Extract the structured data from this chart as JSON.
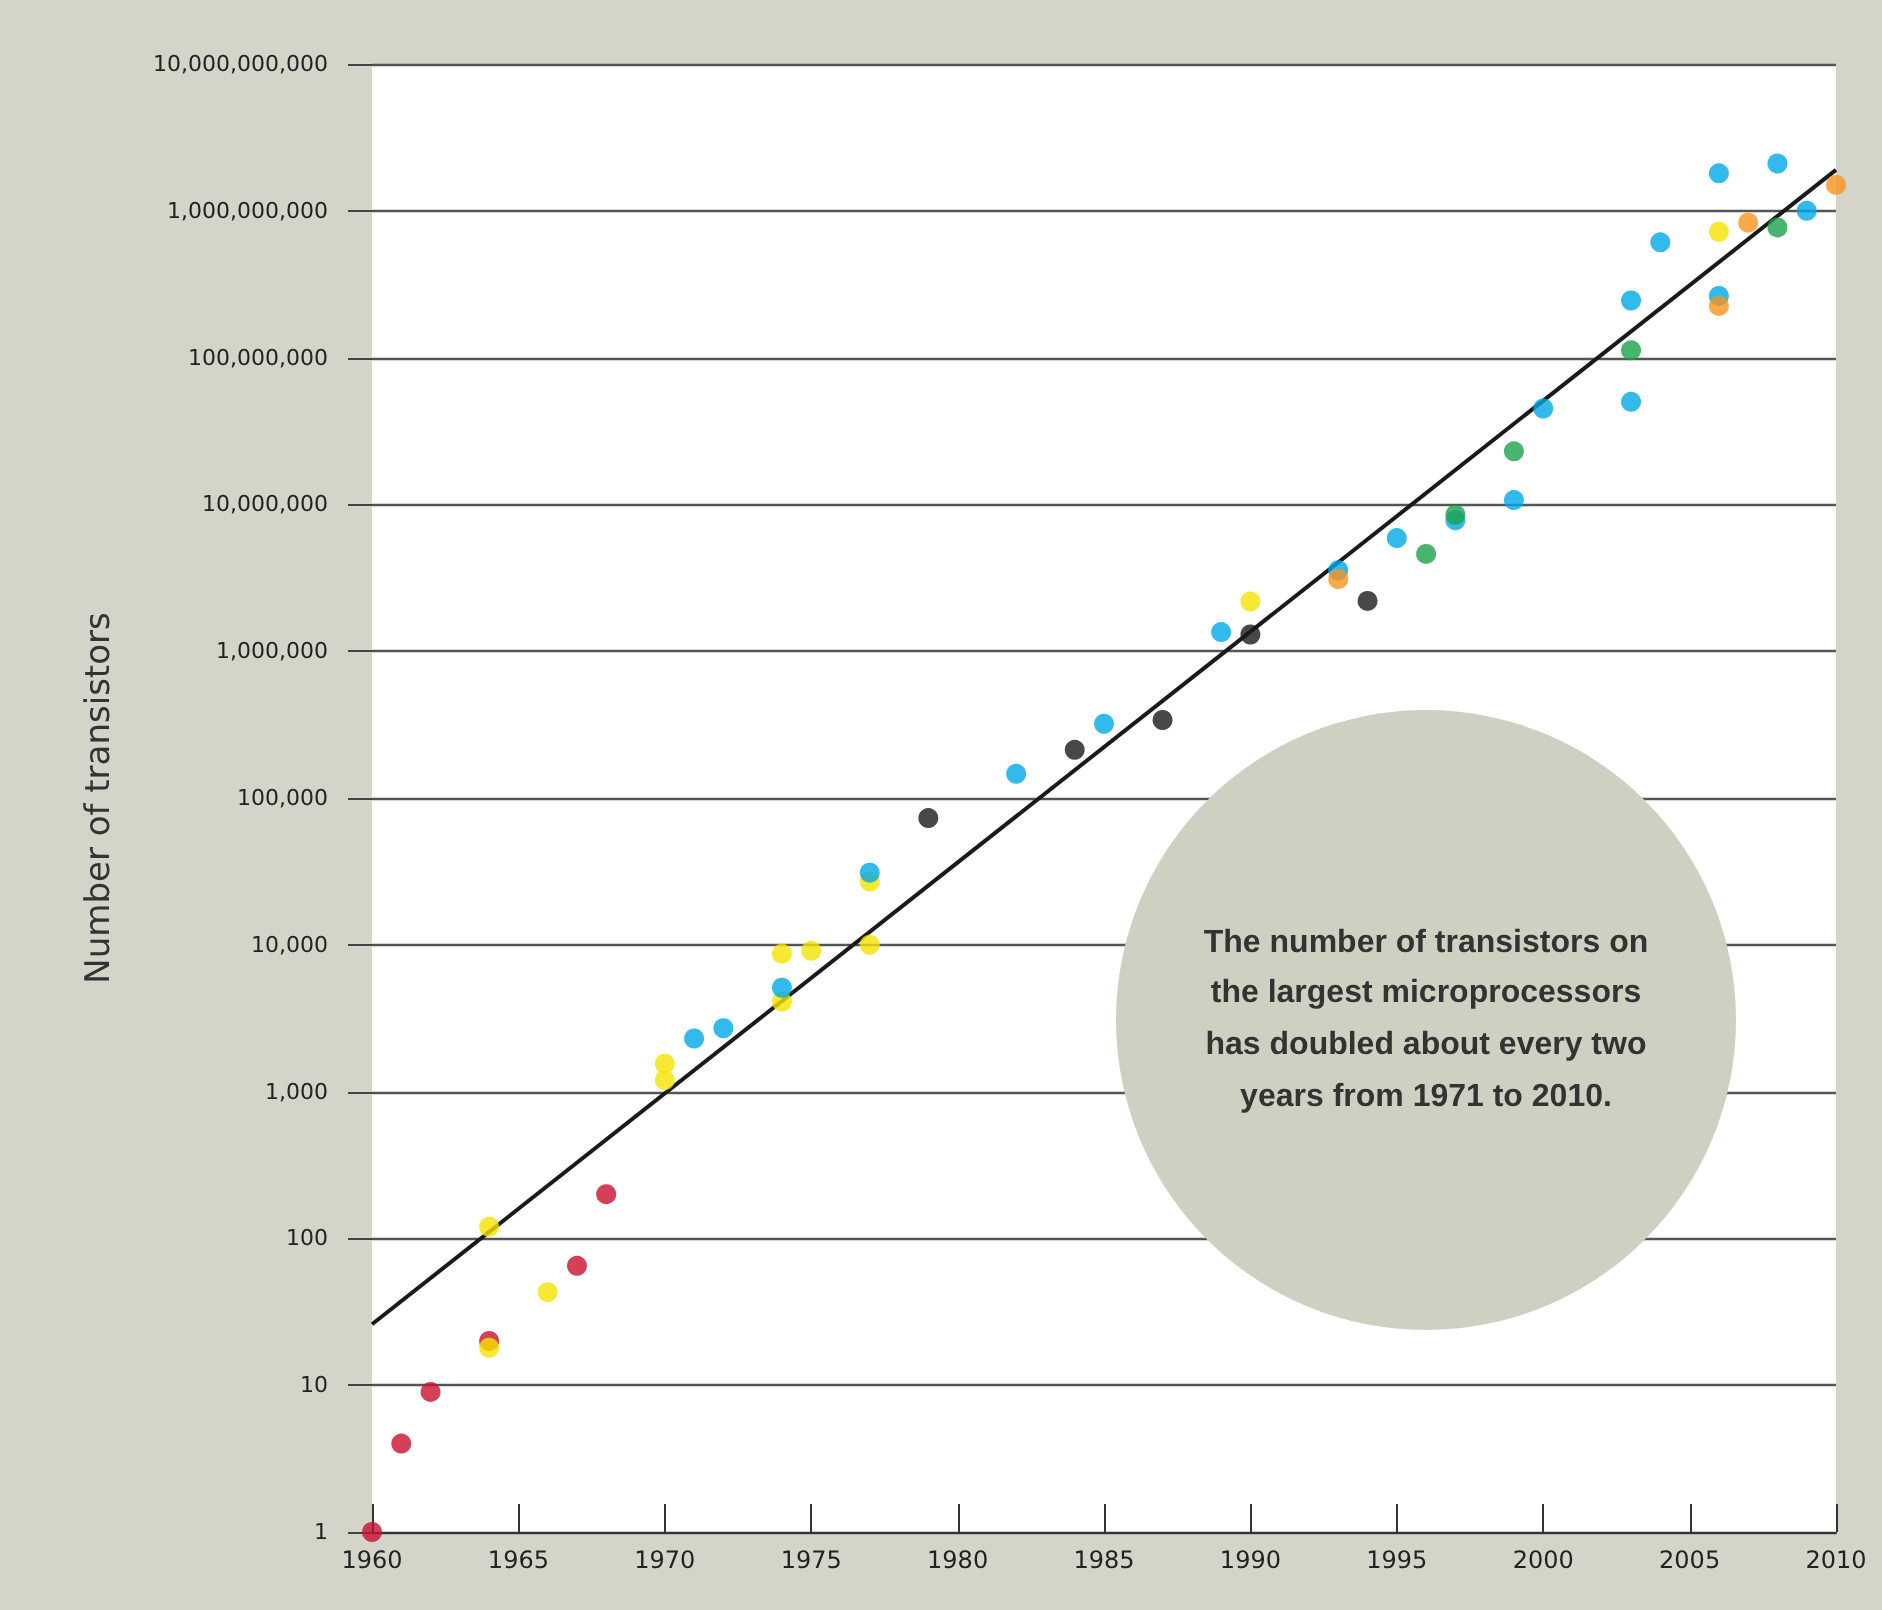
{
  "chart_data": {
    "type": "scatter",
    "ylabel": "Number of transistors",
    "annotations": [
      "The number of transistors on the largest microprocessors has doubled about every two years from 1971 to 2010."
    ],
    "series": [
      {
        "color": "#c8102e",
        "x": [
          1960,
          1961,
          1962,
          1964,
          1967,
          1968
        ],
        "values": [
          1,
          4,
          9,
          20,
          65,
          200
        ]
      },
      {
        "color": "#f5e400",
        "x": [
          1964,
          1964,
          1966,
          1970,
          1970,
          1974,
          1974,
          1975,
          1977,
          1977,
          1990,
          2006
        ],
        "values": [
          120,
          18,
          43,
          1550,
          1200,
          8700,
          4100,
          9100,
          27000,
          10000,
          2180000,
          720000000
        ]
      },
      {
        "color": "#00a9e8",
        "x": [
          1971,
          1972,
          1974,
          1977,
          1982,
          1985,
          1989,
          1993,
          1995,
          1997,
          1999,
          2000,
          2003,
          2003,
          2004,
          2006,
          2006,
          2008,
          2009
        ],
        "values": [
          2300,
          2700,
          5100,
          31000,
          146000,
          320000,
          1350000,
          3560000,
          5900000,
          7800000,
          10700000,
          45000000,
          245000000,
          50000000,
          610000000,
          1800000000,
          263000000,
          2100000000,
          1000000000
        ]
      },
      {
        "color": "#1a1a1a",
        "x": [
          1979,
          1984,
          1987,
          1990,
          1994
        ],
        "values": [
          73000,
          213000,
          340000,
          1300000,
          2200000
        ]
      },
      {
        "color": "#1aa34a",
        "x": [
          1996,
          1997,
          1999,
          2003,
          2008
        ],
        "values": [
          4600000,
          8500000,
          23000000,
          112000000,
          770000000
        ]
      },
      {
        "color": "#f7941d",
        "x": [
          1993,
          2006,
          2007,
          2010
        ],
        "values": [
          3100000,
          225000000,
          830000000,
          1500000000
        ]
      },
      {
        "type": "line",
        "marker": "none",
        "color": "#1a1a1a",
        "x": [
          1960,
          2010
        ],
        "values": [
          26,
          1900000000
        ]
      }
    ],
    "log": "y",
    "grid": "y",
    "marker": "circle",
    "xlim": [
      1960,
      2010
    ],
    "xticks": [
      1960,
      1965,
      1970,
      1975,
      1980,
      1985,
      1990,
      1995,
      2000,
      2005,
      2010
    ],
    "ylim": [
      1,
      10000000000
    ],
    "yticks": [
      1,
      10,
      100,
      {
        "value": 1000,
        "label": "1,000"
      },
      {
        "value": 10000,
        "label": "10,000"
      },
      {
        "value": 100000,
        "label": "100,000"
      },
      {
        "value": 1000000,
        "label": "1,000,000"
      },
      {
        "value": 10000000,
        "label": "10,000,000"
      },
      {
        "value": 100000000,
        "label": "100,000,000"
      },
      {
        "value": 1000000000,
        "label": "1,000,000,000"
      },
      {
        "value": 10000000000,
        "label": "10,000,000,000"
      }
    ]
  }
}
